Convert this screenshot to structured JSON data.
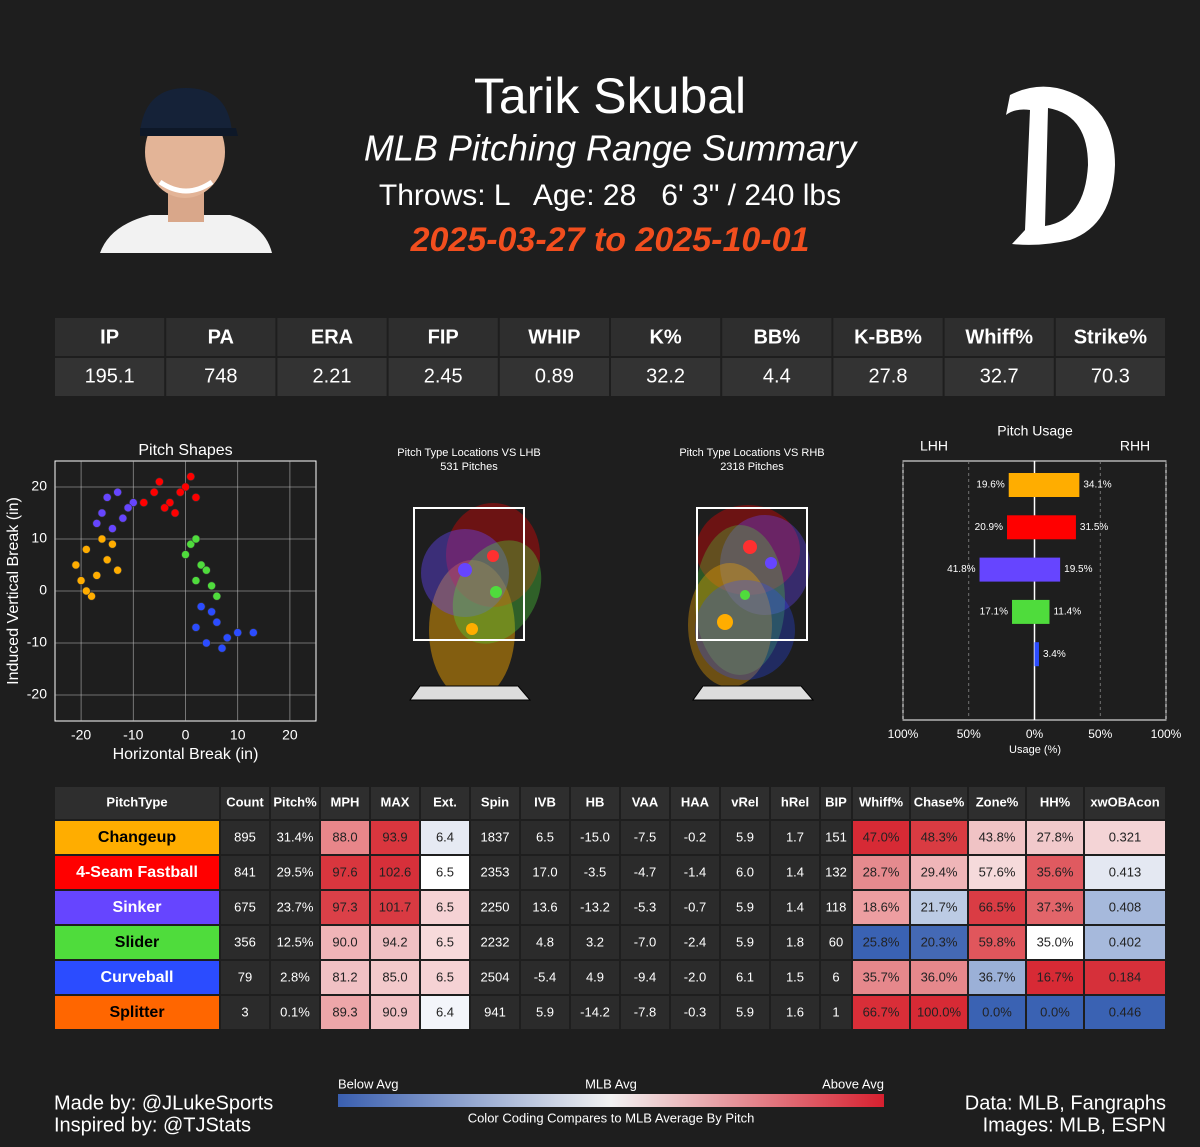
{
  "header": {
    "name": "Tarik Skubal",
    "subtitle": "MLB Pitching Range Summary",
    "info": "Throws: L   Age: 28   6' 3\" / 240 lbs",
    "dates": "2025-03-27 to 2025-10-01"
  },
  "stats": {
    "headers": [
      "IP",
      "PA",
      "ERA",
      "FIP",
      "WHIP",
      "K%",
      "BB%",
      "K-BB%",
      "Whiff%",
      "Strike%"
    ],
    "values": [
      "195.1",
      "748",
      "2.21",
      "2.45",
      "0.89",
      "32.2",
      "4.4",
      "27.8",
      "32.7",
      "70.3"
    ]
  },
  "location_plots": [
    {
      "title": "Pitch Type Locations VS LHB",
      "subtitle": "531 Pitches"
    },
    {
      "title": "Pitch Type Locations VS RHB",
      "subtitle": "2318 Pitches"
    }
  ],
  "chart_data": [
    {
      "type": "scatter",
      "title": "Pitch Shapes",
      "xlabel": "Horizontal Break (in)",
      "ylabel": "Induced Vertical Break (in)",
      "xlim": [
        -25,
        25
      ],
      "ylim": [
        -25,
        25
      ],
      "xticks": [
        -20,
        -10,
        0,
        10,
        20
      ],
      "yticks": [
        -20,
        -10,
        0,
        10,
        20
      ],
      "grid": true,
      "series": [
        {
          "color": "#ffad00",
          "x": [
            -19,
            -17,
            -15,
            -20,
            -16,
            -13,
            -18,
            -21,
            -14,
            -19
          ],
          "y": [
            8,
            3,
            6,
            2,
            10,
            4,
            -1,
            5,
            9,
            0
          ]
        },
        {
          "color": "#ff0000",
          "x": [
            -6,
            -3,
            0,
            -8,
            -2,
            2,
            -5,
            -1,
            -4,
            1
          ],
          "y": [
            19,
            17,
            20,
            17,
            15,
            18,
            21,
            19,
            16,
            22
          ]
        },
        {
          "color": "#6645ff",
          "x": [
            -15,
            -12,
            -16,
            -10,
            -14,
            -13,
            -17,
            -11
          ],
          "y": [
            18,
            14,
            15,
            17,
            12,
            19,
            13,
            16
          ]
        },
        {
          "color": "#4fdc3c",
          "x": [
            1,
            3,
            2,
            5,
            0,
            4,
            2,
            6
          ],
          "y": [
            9,
            5,
            2,
            1,
            7,
            4,
            10,
            -1
          ]
        },
        {
          "color": "#2b4cff",
          "x": [
            3,
            6,
            8,
            4,
            10,
            13,
            7,
            2,
            5
          ],
          "y": [
            -3,
            -6,
            -9,
            -10,
            -8,
            -8,
            -11,
            -7,
            -4
          ]
        }
      ]
    },
    {
      "type": "bar",
      "orientation": "horizontal",
      "title": "Pitch Usage",
      "xlabel": "Usage (%)",
      "xlim": [
        -100,
        100
      ],
      "xticks": [
        {
          "value": -100,
          "label": "100%"
        },
        {
          "value": -50,
          "label": "50%"
        },
        {
          "value": 0,
          "label": "0%"
        },
        {
          "value": 50,
          "label": "50%"
        },
        {
          "value": 100,
          "label": "100%"
        }
      ],
      "colors": [
        "#ffad00",
        "#ff0000",
        "#6645ff",
        "#4fdc3c",
        "#2b4cff"
      ],
      "series": [
        {
          "name": "LHH",
          "values": [
            -19.6,
            -20.9,
            -41.8,
            -17.1,
            null
          ],
          "value_labels": [
            "19.6%",
            "20.9%",
            "41.8%",
            "17.1%",
            null
          ]
        },
        {
          "name": "RHH",
          "values": [
            34.1,
            31.5,
            19.5,
            11.4,
            3.4
          ],
          "value_labels": [
            "34.1%",
            "31.5%",
            "19.5%",
            "11.4%",
            "3.4%"
          ]
        }
      ]
    }
  ],
  "pitch_table": {
    "headers": [
      "PitchType",
      "Count",
      "Pitch%",
      "MPH",
      "MAX",
      "Ext.",
      "Spin",
      "IVB",
      "HB",
      "VAA",
      "HAA",
      "vRel",
      "hRel",
      "BIP",
      "Whiff%",
      "Chase%",
      "Zone%",
      "HH%",
      "xwOBAcon"
    ],
    "rows": [
      {
        "name": "Changeup",
        "color": "#ffad00",
        "text_color": "#000000",
        "cells": [
          "895",
          "31.4%",
          "88.0",
          "93.9",
          "6.4",
          "1837",
          "6.5",
          "-15.0",
          "-7.5",
          "-0.2",
          "5.9",
          "1.7",
          "151",
          "47.0%",
          "48.3%",
          "43.8%",
          "27.8%",
          "0.321"
        ],
        "cell_colors": [
          "#2b2b2b",
          "#2b2b2b",
          "#e8868a",
          "#d9363e",
          "#e6eaf3",
          "#2b2b2b",
          "#2b2b2b",
          "#2b2b2b",
          "#2b2b2b",
          "#2b2b2b",
          "#2b2b2b",
          "#2b2b2b",
          "#2b2b2b",
          "#d72a35",
          "#d93b42",
          "#f0c3c5",
          "#f1c9cb",
          "#f4d4d6"
        ]
      },
      {
        "name": "4-Seam Fastball",
        "color": "#ff0000",
        "text_color": "#ffffff",
        "cells": [
          "841",
          "29.5%",
          "97.6",
          "102.6",
          "6.5",
          "2353",
          "17.0",
          "-3.5",
          "-4.7",
          "-1.4",
          "6.0",
          "1.4",
          "132",
          "28.7%",
          "29.4%",
          "57.6%",
          "35.6%",
          "0.413"
        ],
        "cell_colors": [
          "#2b2b2b",
          "#2b2b2b",
          "#d9363e",
          "#d6303a",
          "#ffffff",
          "#2b2b2b",
          "#2b2b2b",
          "#2b2b2b",
          "#2b2b2b",
          "#2b2b2b",
          "#2b2b2b",
          "#2b2b2b",
          "#2b2b2b",
          "#e58a8e",
          "#efb5b8",
          "#f5dadb",
          "#e05a60",
          "#e4e8f2"
        ]
      },
      {
        "name": "Sinker",
        "color": "#6645ff",
        "text_color": "#ffffff",
        "cells": [
          "675",
          "23.7%",
          "97.3",
          "101.7",
          "6.5",
          "2250",
          "13.6",
          "-13.2",
          "-5.3",
          "-0.7",
          "5.9",
          "1.4",
          "118",
          "18.6%",
          "21.7%",
          "66.5%",
          "37.3%",
          "0.408"
        ],
        "cell_colors": [
          "#2b2b2b",
          "#2b2b2b",
          "#db4048",
          "#d93a42",
          "#f5d2d4",
          "#2b2b2b",
          "#2b2b2b",
          "#2b2b2b",
          "#2b2b2b",
          "#2b2b2b",
          "#2b2b2b",
          "#2b2b2b",
          "#2b2b2b",
          "#ed9ea1",
          "#bccbe4",
          "#da3c44",
          "#e2656a",
          "#a6b9dc"
        ]
      },
      {
        "name": "Slider",
        "color": "#4fdc3c",
        "text_color": "#000000",
        "cells": [
          "356",
          "12.5%",
          "90.0",
          "94.2",
          "6.5",
          "2232",
          "4.8",
          "3.2",
          "-7.0",
          "-2.4",
          "5.9",
          "1.8",
          "60",
          "25.8%",
          "20.3%",
          "59.8%",
          "35.0%",
          "0.402"
        ],
        "cell_colors": [
          "#2b2b2b",
          "#2b2b2b",
          "#f0b4b7",
          "#f0c0c3",
          "#f7dadb",
          "#2b2b2b",
          "#2b2b2b",
          "#2b2b2b",
          "#2b2b2b",
          "#2b2b2b",
          "#2b2b2b",
          "#2b2b2b",
          "#2b2b2b",
          "#3a62b3",
          "#4469b5",
          "#e0565c",
          "#ffffff",
          "#a6b9dc"
        ]
      },
      {
        "name": "Curveball",
        "color": "#2b4cff",
        "text_color": "#ffffff",
        "cells": [
          "79",
          "2.8%",
          "81.2",
          "85.0",
          "6.5",
          "2504",
          "-5.4",
          "4.9",
          "-9.4",
          "-2.0",
          "6.1",
          "1.5",
          "6",
          "35.7%",
          "36.0%",
          "36.7%",
          "16.7%",
          "0.184"
        ],
        "cell_colors": [
          "#2b2b2b",
          "#2b2b2b",
          "#f1c1c4",
          "#f3c9cb",
          "#f5d2d4",
          "#2b2b2b",
          "#2b2b2b",
          "#2b2b2b",
          "#2b2b2b",
          "#2b2b2b",
          "#2b2b2b",
          "#2b2b2b",
          "#2b2b2b",
          "#e6888c",
          "#e6888c",
          "#9bb0d7",
          "#d72a35",
          "#d6303a"
        ]
      },
      {
        "name": "Splitter",
        "color": "#ff6600",
        "text_color": "#000000",
        "cells": [
          "3",
          "0.1%",
          "89.3",
          "90.9",
          "6.4",
          "941",
          "5.9",
          "-14.2",
          "-7.8",
          "-0.3",
          "5.9",
          "1.6",
          "1",
          "66.7%",
          "100.0%",
          "0.0%",
          "0.0%",
          "0.446"
        ],
        "cell_colors": [
          "#2b2b2b",
          "#2b2b2b",
          "#eda6a9",
          "#f1c1c4",
          "#f3f5fa",
          "#2b2b2b",
          "#2b2b2b",
          "#2b2b2b",
          "#2b2b2b",
          "#2b2b2b",
          "#2b2b2b",
          "#2b2b2b",
          "#2b2b2b",
          "#d92e38",
          "#d72a35",
          "#3a62b3",
          "#3a62b3",
          "#3a62b3"
        ]
      }
    ]
  },
  "colorbar": {
    "low": "Below Avg",
    "mid": "MLB Avg",
    "high": "Above Avg",
    "caption": "Color Coding Compares to MLB Average By Pitch"
  },
  "footer": {
    "made_by": "Made by: @JLukeSports",
    "inspired_by": "Inspired by: @TJStats",
    "data": "Data: MLB, Fangraphs",
    "images": "Images: MLB, ESPN"
  }
}
